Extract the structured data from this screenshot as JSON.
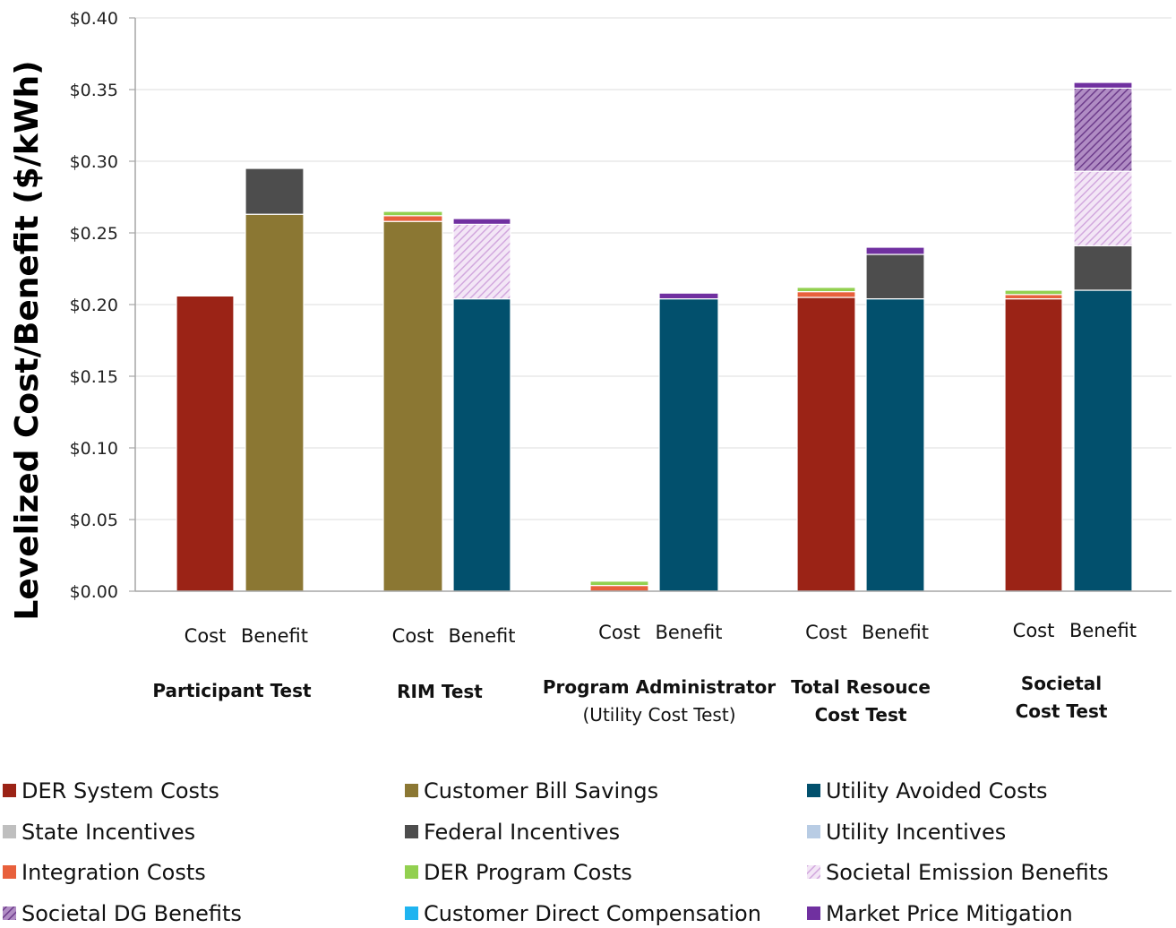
{
  "chart_data": {
    "type": "bar",
    "stacked": true,
    "title": "",
    "xlabel": "",
    "ylabel": "Levelized Cost/Benefit ($/kWh)",
    "ylim": [
      0,
      0.4
    ],
    "yticks": [
      "$0.00",
      "$0.05",
      "$0.10",
      "$0.15",
      "$0.20",
      "$0.25",
      "$0.30",
      "$0.35",
      "$0.40"
    ],
    "grid": true,
    "legend_position": "bottom",
    "groups": [
      {
        "name": "Participant Test",
        "name_line2": "",
        "bars": [
          "Cost",
          "Benefit"
        ]
      },
      {
        "name": "RIM Test",
        "name_line2": "",
        "bars": [
          "Cost",
          "Benefit"
        ]
      },
      {
        "name": "Program Administrator",
        "name_line2": "(Utility Cost Test)",
        "bars": [
          "Cost",
          "Benefit"
        ]
      },
      {
        "name": "Total Resouce",
        "name_line2": "Cost Test",
        "bars": [
          "Cost",
          "Benefit"
        ]
      },
      {
        "name": "Societal",
        "name_line2": "Cost Test",
        "bars": [
          "Cost",
          "Benefit"
        ]
      }
    ],
    "categories": [
      "Participant Test - Cost",
      "Participant Test - Benefit",
      "RIM Test - Cost",
      "RIM Test - Benefit",
      "Program Administrator - Cost",
      "Program Administrator - Benefit",
      "Total Resouce Cost Test - Cost",
      "Total Resouce Cost Test - Benefit",
      "Societal Cost Test - Cost",
      "Societal Cost Test - Benefit"
    ],
    "series": [
      {
        "name": "DER System Costs",
        "color": "#9b2316",
        "pattern": "solid",
        "values": [
          0.206,
          0,
          0,
          0,
          0,
          0,
          0.205,
          0,
          0.204,
          0
        ]
      },
      {
        "name": "Customer Bill Savings",
        "color": "#8b7733",
        "pattern": "solid",
        "values": [
          0,
          0.263,
          0.258,
          0,
          0,
          0,
          0,
          0,
          0,
          0
        ]
      },
      {
        "name": "Utility Avoided Costs",
        "color": "#02506d",
        "pattern": "solid",
        "values": [
          0,
          0,
          0,
          0.204,
          0,
          0.204,
          0,
          0.204,
          0,
          0.21
        ]
      },
      {
        "name": "State Incentives",
        "color": "#bfbfbf",
        "pattern": "solid",
        "values": [
          0,
          0,
          0,
          0,
          0,
          0,
          0,
          0,
          0,
          0
        ]
      },
      {
        "name": "Federal Incentives",
        "color": "#4d4d4d",
        "pattern": "solid",
        "values": [
          0,
          0.032,
          0,
          0,
          0,
          0,
          0,
          0.031,
          0,
          0.031
        ]
      },
      {
        "name": "Utility Incentives",
        "color": "#b8cce4",
        "pattern": "solid",
        "values": [
          0,
          0,
          0,
          0,
          0,
          0,
          0,
          0,
          0,
          0
        ]
      },
      {
        "name": "Integration Costs",
        "color": "#e8603c",
        "pattern": "solid",
        "values": [
          0,
          0,
          0.004,
          0,
          0.004,
          0,
          0.004,
          0,
          0.003,
          0
        ]
      },
      {
        "name": "DER Program Costs",
        "color": "#92d050",
        "pattern": "solid",
        "values": [
          0,
          0,
          0.003,
          0,
          0.003,
          0,
          0.003,
          0,
          0.003,
          0
        ]
      },
      {
        "name": "Societal Emission Benefits",
        "color": "#e4c6ec",
        "pattern": "hatch-light",
        "values": [
          0,
          0,
          0,
          0.052,
          0,
          0,
          0,
          0,
          0,
          0.052
        ]
      },
      {
        "name": "Societal DG Benefits",
        "color": "#8e5aa6",
        "pattern": "hatch-dark",
        "values": [
          0,
          0,
          0,
          0,
          0,
          0,
          0,
          0,
          0,
          0.058
        ]
      },
      {
        "name": "Customer Direct Compensation",
        "color": "#1fb4f0",
        "pattern": "solid",
        "values": [
          0,
          0,
          0,
          0,
          0,
          0,
          0,
          0,
          0,
          0
        ]
      },
      {
        "name": "Market Price Mitigation",
        "color": "#7030a0",
        "pattern": "solid",
        "values": [
          0,
          0,
          0,
          0.004,
          0,
          0.004,
          0,
          0.005,
          0,
          0.004
        ]
      }
    ]
  }
}
